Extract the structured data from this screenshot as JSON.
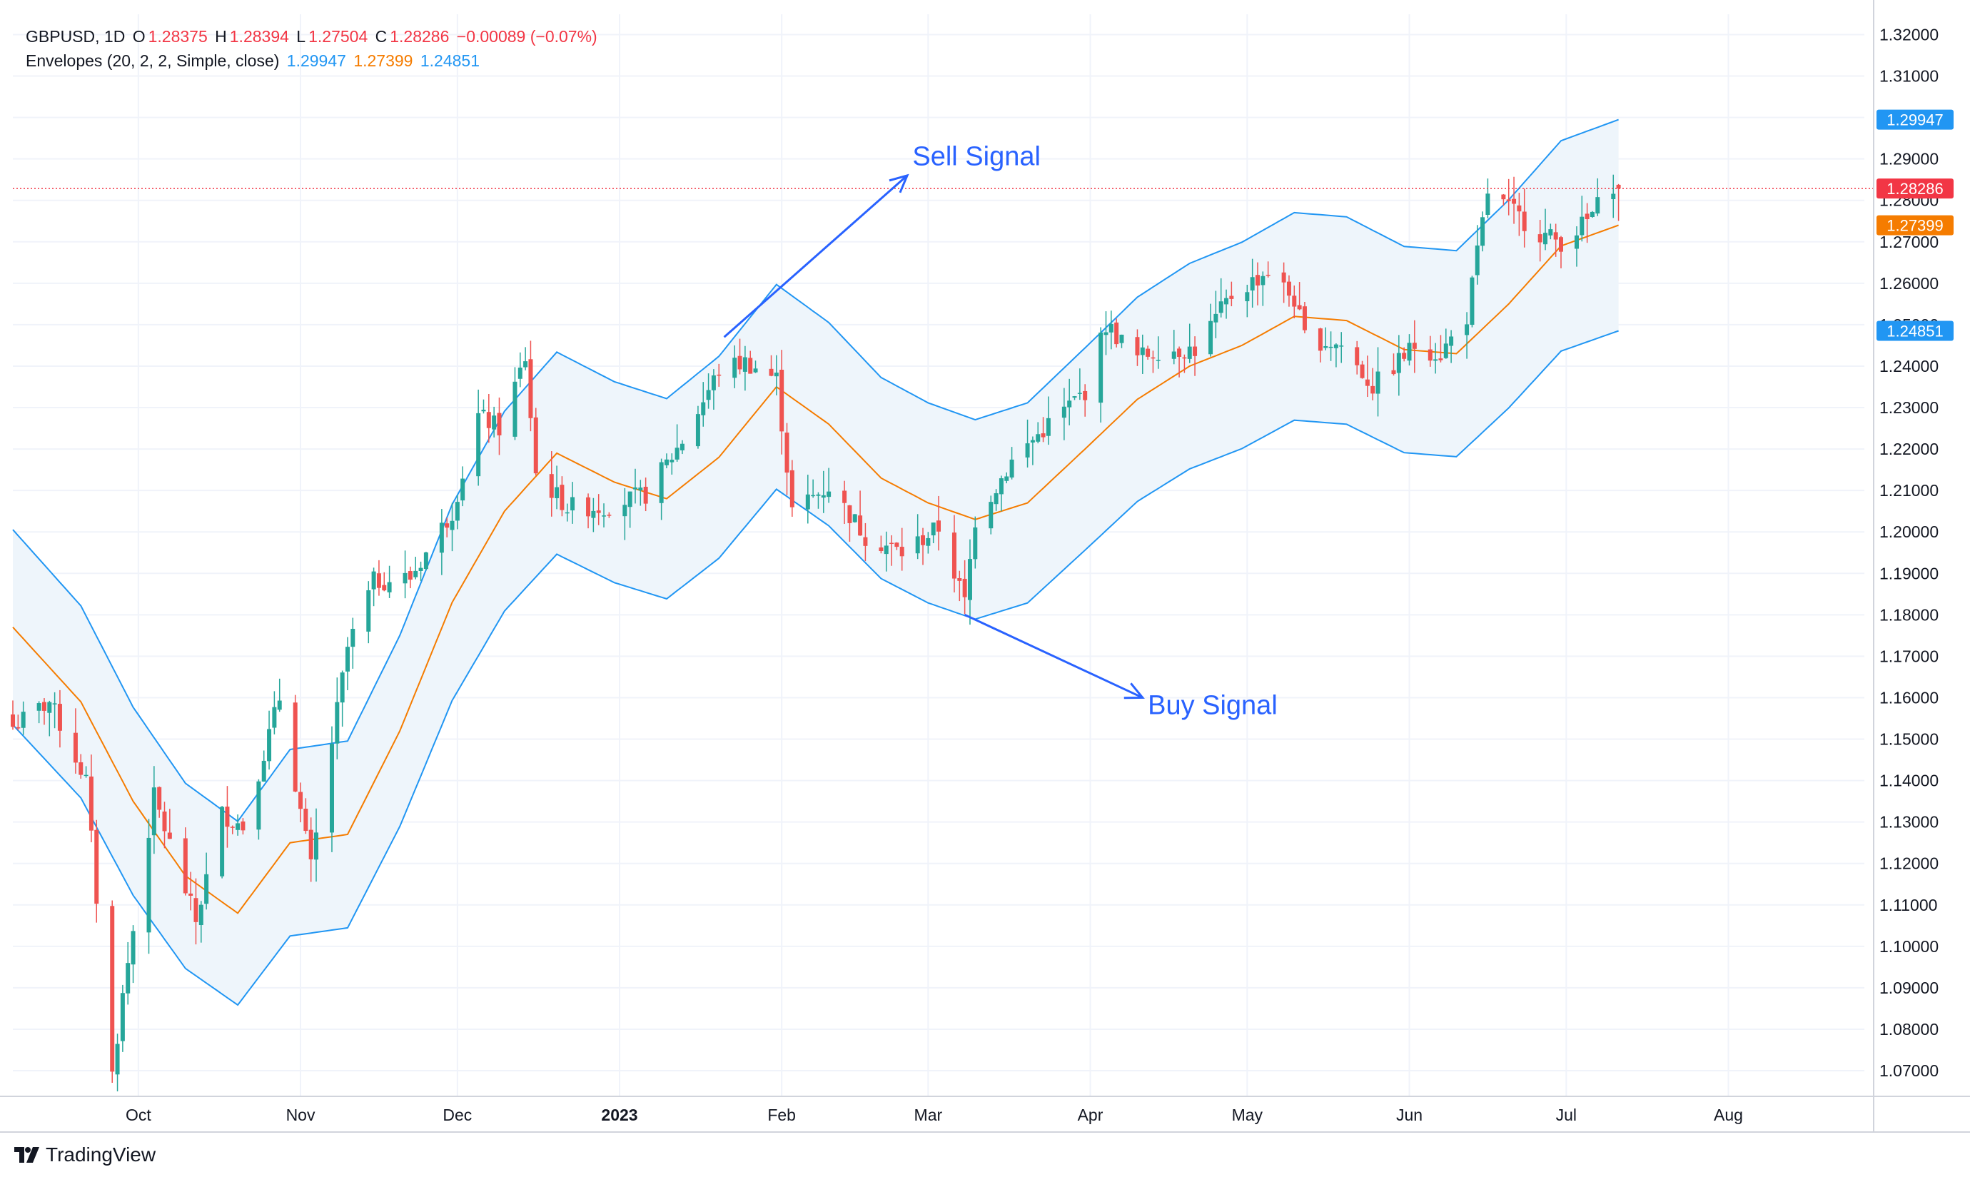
{
  "legend": {
    "symbol": "GBPUSD, 1D",
    "o_label": "O",
    "o": "1.28375",
    "h_label": "H",
    "h": "1.28394",
    "l_label": "L",
    "l": "1.27504",
    "c_label": "C",
    "c": "1.28286",
    "change": "−0.00089 (−0.07%)",
    "indicator": "Envelopes (20, 2, 2, Simple, close)",
    "upper": "1.29947",
    "basis": "1.27399",
    "lower": "1.24851"
  },
  "branding": {
    "name": "TradingView"
  },
  "colors": {
    "up": "#26a69a",
    "down": "#ef5350",
    "envelope": "#2196f3",
    "basis": "#f57c00",
    "fill": "#eef5fb",
    "annotation": "#2962ff",
    "grid": "#f0f3fa",
    "price_line": "#f23645"
  },
  "chart_data": {
    "type": "candlestick",
    "title": "",
    "price_axis": {
      "range": [
        1.0638,
        1.3249
      ],
      "ticks": [
        "1.07000",
        "1.08000",
        "1.09000",
        "1.10000",
        "1.11000",
        "1.12000",
        "1.13000",
        "1.14000",
        "1.15000",
        "1.16000",
        "1.17000",
        "1.18000",
        "1.19000",
        "1.20000",
        "1.21000",
        "1.22000",
        "1.23000",
        "1.24000",
        "1.25000",
        "1.26000",
        "1.27000",
        "1.28000",
        "1.29000",
        "1.30000",
        "1.31000",
        "1.32000"
      ]
    },
    "time_axis": {
      "range": [
        "2022-09-07",
        "2023-08-27"
      ],
      "ticks": [
        {
          "date": "2022-10-01",
          "label": "Oct",
          "bold": false
        },
        {
          "date": "2022-11-01",
          "label": "Nov",
          "bold": false
        },
        {
          "date": "2022-12-01",
          "label": "Dec",
          "bold": false
        },
        {
          "date": "2023-01-01",
          "label": "2023",
          "bold": true
        },
        {
          "date": "2023-02-01",
          "label": "Feb",
          "bold": false
        },
        {
          "date": "2023-03-01",
          "label": "Mar",
          "bold": false
        },
        {
          "date": "2023-04-01",
          "label": "Apr",
          "bold": false
        },
        {
          "date": "2023-05-01",
          "label": "May",
          "bold": false
        },
        {
          "date": "2023-06-01",
          "label": "Jun",
          "bold": false
        },
        {
          "date": "2023-07-01",
          "label": "Jul",
          "bold": false
        },
        {
          "date": "2023-08-01",
          "label": "Aug",
          "bold": false
        }
      ],
      "first_bar": "2022-09-07",
      "last_bar": "2023-07-11"
    },
    "basis_path": [
      [
        "2022-09-07",
        1.177
      ],
      [
        "2022-09-20",
        1.159
      ],
      [
        "2022-09-30",
        1.135
      ],
      [
        "2022-10-10",
        1.117
      ],
      [
        "2022-10-20",
        1.108
      ],
      [
        "2022-10-30",
        1.125
      ],
      [
        "2022-11-10",
        1.127
      ],
      [
        "2022-11-20",
        1.152
      ],
      [
        "2022-11-30",
        1.183
      ],
      [
        "2022-12-10",
        1.205
      ],
      [
        "2022-12-20",
        1.219
      ],
      [
        "2022-12-31",
        1.212
      ],
      [
        "2023-01-10",
        1.208
      ],
      [
        "2023-01-20",
        1.218
      ],
      [
        "2023-01-31",
        1.235
      ],
      [
        "2023-02-10",
        1.226
      ],
      [
        "2023-02-20",
        1.213
      ],
      [
        "2023-03-01",
        1.207
      ],
      [
        "2023-03-10",
        1.203
      ],
      [
        "2023-03-20",
        1.207
      ],
      [
        "2023-03-31",
        1.22
      ],
      [
        "2023-04-10",
        1.232
      ],
      [
        "2023-04-20",
        1.24
      ],
      [
        "2023-04-30",
        1.245
      ],
      [
        "2023-05-10",
        1.252
      ],
      [
        "2023-05-20",
        1.251
      ],
      [
        "2023-05-31",
        1.244
      ],
      [
        "2023-06-10",
        1.243
      ],
      [
        "2023-06-20",
        1.255
      ],
      [
        "2023-06-30",
        1.269
      ],
      [
        "2023-07-11",
        1.274
      ]
    ],
    "series": [
      {
        "name": "Envelopes upper",
        "value": 1.29947,
        "style": "line"
      },
      {
        "name": "Envelopes basis",
        "value": 1.27399,
        "style": "line"
      },
      {
        "name": "Envelopes lower",
        "value": 1.24851,
        "style": "line"
      }
    ],
    "envelope_percent": 2,
    "anchors": [
      [
        "2022-09-07",
        1.153
      ],
      [
        "2022-09-14",
        1.159
      ],
      [
        "2022-09-21",
        1.14
      ],
      [
        "2022-09-26",
        1.069
      ],
      [
        "2022-09-28",
        1.088
      ],
      [
        "2022-10-04",
        1.136
      ],
      [
        "2022-10-12",
        1.106
      ],
      [
        "2022-10-17",
        1.132
      ],
      [
        "2022-10-21",
        1.129
      ],
      [
        "2022-10-28",
        1.16
      ],
      [
        "2022-11-03",
        1.119
      ],
      [
        "2022-11-10",
        1.172
      ],
      [
        "2022-11-15",
        1.188
      ],
      [
        "2022-11-22",
        1.189
      ],
      [
        "2022-11-30",
        1.205
      ],
      [
        "2022-12-05",
        1.228
      ],
      [
        "2022-12-09",
        1.225
      ],
      [
        "2022-12-14",
        1.242
      ],
      [
        "2022-12-16",
        1.214
      ],
      [
        "2022-12-22",
        1.206
      ],
      [
        "2022-12-29",
        1.206
      ],
      [
        "2023-01-06",
        1.209
      ],
      [
        "2023-01-13",
        1.222
      ],
      [
        "2023-01-20",
        1.239
      ],
      [
        "2023-01-25",
        1.241
      ],
      [
        "2023-01-31",
        1.237
      ],
      [
        "2023-02-03",
        1.205
      ],
      [
        "2023-02-10",
        1.211
      ],
      [
        "2023-02-17",
        1.199
      ],
      [
        "2023-02-24",
        1.195
      ],
      [
        "2023-03-03",
        1.201
      ],
      [
        "2023-03-08",
        1.183
      ],
      [
        "2023-03-10",
        1.203
      ],
      [
        "2023-03-17",
        1.217
      ],
      [
        "2023-03-24",
        1.226
      ],
      [
        "2023-03-31",
        1.234
      ],
      [
        "2023-04-04",
        1.25
      ],
      [
        "2023-04-10",
        1.242
      ],
      [
        "2023-04-14",
        1.244
      ],
      [
        "2023-04-21",
        1.244
      ],
      [
        "2023-04-28",
        1.257
      ],
      [
        "2023-05-05",
        1.263
      ],
      [
        "2023-05-10",
        1.256
      ],
      [
        "2023-05-12",
        1.247
      ],
      [
        "2023-05-19",
        1.245
      ],
      [
        "2023-05-25",
        1.235
      ],
      [
        "2023-06-02",
        1.245
      ],
      [
        "2023-06-07",
        1.243
      ],
      [
        "2023-06-12",
        1.252
      ],
      [
        "2023-06-16",
        1.282
      ],
      [
        "2023-06-21",
        1.277
      ],
      [
        "2023-06-26",
        1.272
      ],
      [
        "2023-06-30",
        1.27
      ],
      [
        "2023-07-05",
        1.275
      ],
      [
        "2023-07-10",
        1.284
      ],
      [
        "2023-07-11",
        1.2829
      ]
    ],
    "last_candle": {
      "date": "2023-07-11",
      "open": 1.28375,
      "high": 1.28394,
      "low": 1.27504,
      "close": 1.28286
    },
    "price_tags": [
      {
        "label": "1.29947",
        "value": 1.29947,
        "color": "#2196f3"
      },
      {
        "label": "1.28286",
        "value": 1.28286,
        "color": "#f23645"
      },
      {
        "label": "1.27399",
        "value": 1.27399,
        "color": "#f57c00"
      },
      {
        "label": "1.24851",
        "value": 1.24851,
        "color": "#2196f3"
      }
    ],
    "annotations": [
      {
        "text": "Sell Signal",
        "arrow_from": [
          "2023-01-21",
          1.247
        ],
        "arrow_to": [
          "2023-02-25",
          1.286
        ],
        "text_at": [
          "2023-02-26",
          1.2885
        ]
      },
      {
        "text": "Buy Signal",
        "arrow_from": [
          "2023-03-08",
          1.18
        ],
        "arrow_to": [
          "2023-04-11",
          1.16
        ],
        "text_at": [
          "2023-04-12",
          1.156
        ]
      }
    ],
    "grid": true
  }
}
